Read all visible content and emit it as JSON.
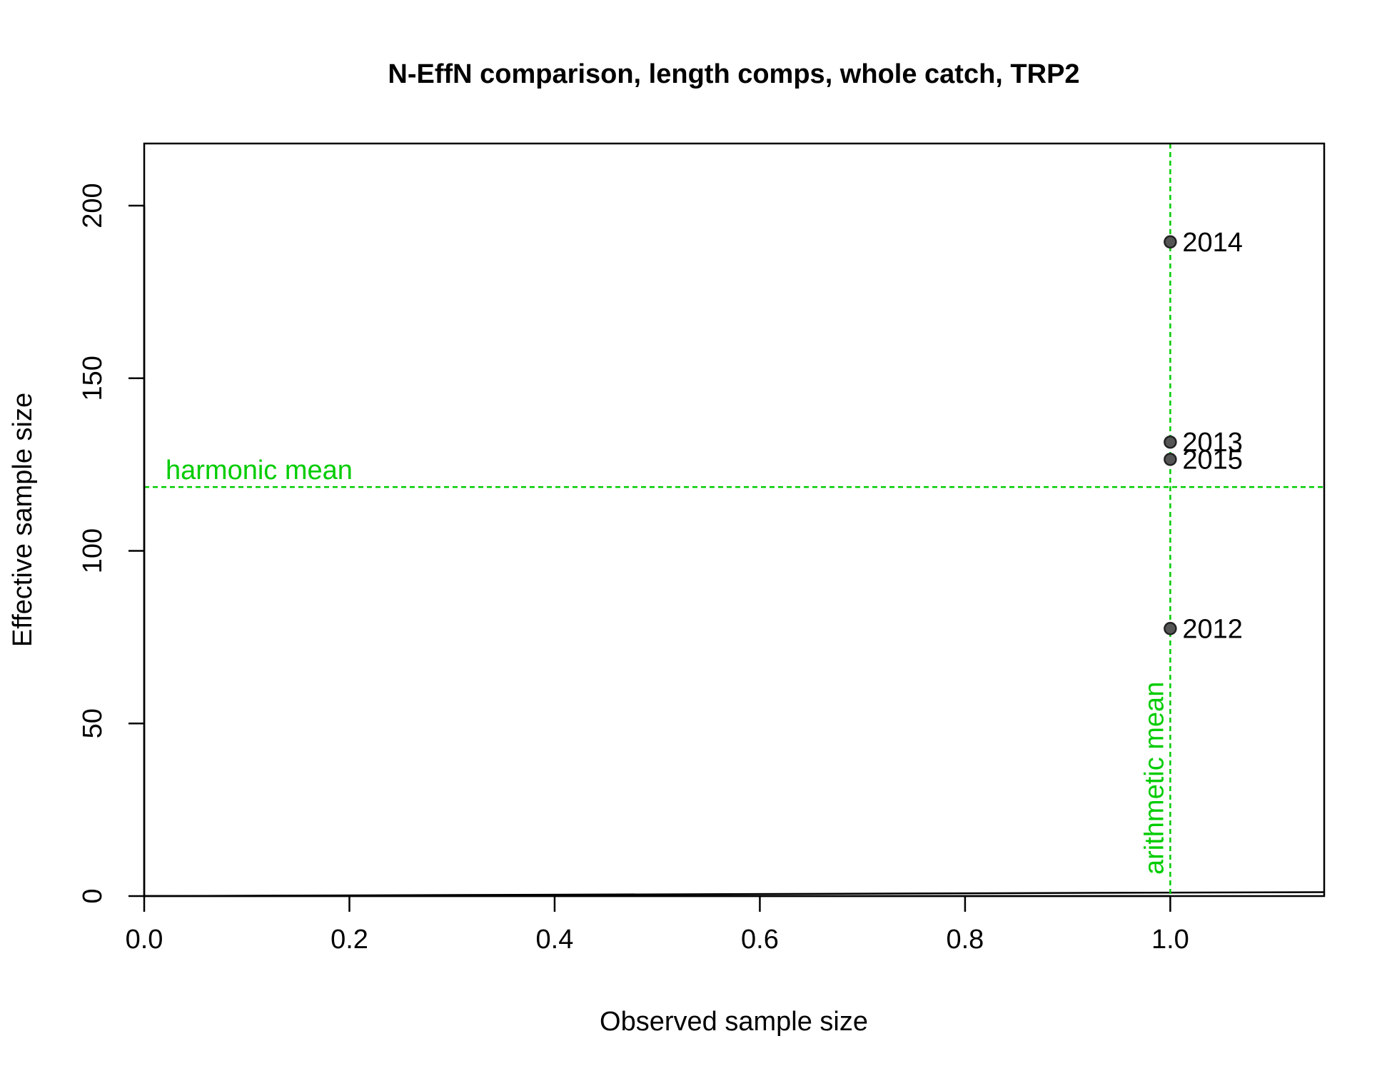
{
  "chart_data": {
    "type": "scatter",
    "title": "N-EffN comparison, length comps, whole catch, TRP2",
    "xlabel": "Observed sample size",
    "ylabel": "Effective sample size",
    "xlim": [
      0,
      1.15
    ],
    "ylim": [
      0,
      218
    ],
    "x_ticks": [
      "0.0",
      "0.2",
      "0.4",
      "0.6",
      "0.8",
      "1.0"
    ],
    "y_ticks": [
      "0",
      "50",
      "100",
      "150",
      "200"
    ],
    "grid": false,
    "points": [
      {
        "x": 1.0,
        "y": 189.5,
        "label": "2014"
      },
      {
        "x": 1.0,
        "y": 131.5,
        "label": "2013"
      },
      {
        "x": 1.0,
        "y": 126.5,
        "label": "2015"
      },
      {
        "x": 1.0,
        "y": 77.5,
        "label": "2012"
      }
    ],
    "reference_lines": {
      "harmonic_mean": {
        "y": 118.5,
        "label": "harmonic mean"
      },
      "arithmetic_mean": {
        "x": 1.0,
        "label": "arithmetic mean"
      },
      "one_to_one": {
        "slope": 1,
        "intercept": 0
      }
    },
    "colors": {
      "reference": "#00cc00",
      "points_fill": "#555555",
      "points_stroke": "#222222",
      "axes": "#000000"
    }
  }
}
